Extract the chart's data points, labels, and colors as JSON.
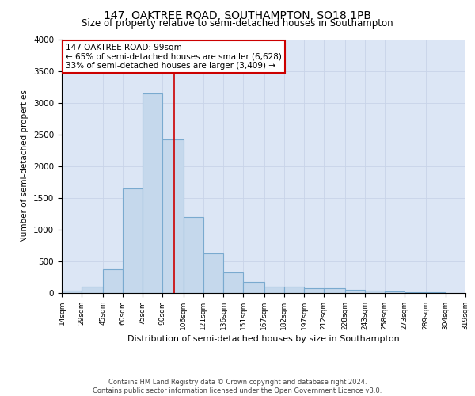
{
  "title": "147, OAKTREE ROAD, SOUTHAMPTON, SO18 1PB",
  "subtitle": "Size of property relative to semi-detached houses in Southampton",
  "xlabel": "Distribution of semi-detached houses by size in Southampton",
  "ylabel": "Number of semi-detached properties",
  "footer1": "Contains HM Land Registry data © Crown copyright and database right 2024.",
  "footer2": "Contains public sector information licensed under the Open Government Licence v3.0.",
  "annotation_title": "147 OAKTREE ROAD: 99sqm",
  "annotation_line1": "← 65% of semi-detached houses are smaller (6,628)",
  "annotation_line2": "33% of semi-detached houses are larger (3,409) →",
  "property_size": 99,
  "bar_color": "#c5d8ec",
  "bar_edge_color": "#7aaacf",
  "vline_color": "#cc0000",
  "annotation_box_color": "#ffffff",
  "annotation_box_edge": "#cc0000",
  "grid_color": "#c8d4e8",
  "bg_color": "#dce6f5",
  "bins": [
    14,
    29,
    45,
    60,
    75,
    90,
    106,
    121,
    136,
    151,
    167,
    182,
    197,
    212,
    228,
    243,
    258,
    273,
    289,
    304,
    319
  ],
  "values": [
    40,
    100,
    370,
    1650,
    3150,
    2430,
    1200,
    620,
    330,
    175,
    100,
    100,
    75,
    70,
    55,
    40,
    25,
    15,
    10,
    5
  ],
  "ylim": [
    0,
    4000
  ],
  "yticks": [
    0,
    500,
    1000,
    1500,
    2000,
    2500,
    3000,
    3500,
    4000
  ]
}
